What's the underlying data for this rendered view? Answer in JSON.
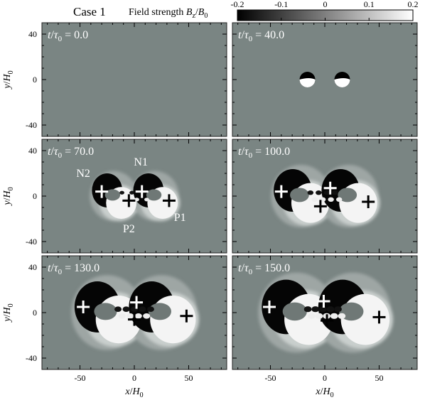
{
  "chart_data": {
    "type": "heatmap",
    "case_label": "Case 1",
    "colorbar": {
      "title_parts": [
        "Field strength ",
        "B",
        "z",
        "/",
        "B",
        "0"
      ],
      "min": -0.2,
      "max": 0.2,
      "ticks": [
        -0.2,
        -0.1,
        0,
        0.1,
        0.2
      ],
      "tick_labels": [
        "-0.2",
        "-0.1",
        "0",
        "0.1",
        "0.2"
      ],
      "colors": [
        "#000000",
        "#ffffff"
      ]
    },
    "xaxis": {
      "label_parts": [
        "x",
        "/",
        "H",
        "0"
      ],
      "range": [
        -85,
        85
      ],
      "ticks": [
        -50,
        0,
        50
      ],
      "tick_labels": [
        "-50",
        "0",
        "50"
      ]
    },
    "yaxis": {
      "label_parts": [
        "y",
        "/",
        "H",
        "0"
      ],
      "range": [
        -50,
        50
      ],
      "ticks": [
        40,
        0,
        -40
      ],
      "tick_labels": [
        "40",
        "0",
        "-40"
      ]
    },
    "background_color": "#7a8583",
    "time_label_parts": [
      "t",
      "/",
      "τ",
      "0",
      " = "
    ],
    "panels": [
      {
        "row": 0,
        "col": 0,
        "time": "0.0",
        "markers": []
      },
      {
        "row": 0,
        "col": 1,
        "time": "40.0",
        "markers": []
      },
      {
        "row": 1,
        "col": 0,
        "time": "70.0",
        "markers": [
          {
            "x": -30,
            "y": 4,
            "color": "#ffffff"
          },
          {
            "x": -5,
            "y": -4,
            "color": "#000000"
          },
          {
            "x": 7,
            "y": 4,
            "color": "#ffffff"
          },
          {
            "x": 32,
            "y": -4,
            "color": "#000000"
          }
        ],
        "annotations": [
          {
            "text": "N2",
            "x": -47,
            "y": 17
          },
          {
            "text": "N1",
            "x": 6,
            "y": 27
          },
          {
            "text": "P2",
            "x": -5,
            "y": -32
          },
          {
            "text": "P1",
            "x": 42,
            "y": -22
          }
        ]
      },
      {
        "row": 1,
        "col": 1,
        "time": "100.0",
        "markers": [
          {
            "x": -40,
            "y": 4,
            "color": "#ffffff"
          },
          {
            "x": -4,
            "y": -9,
            "color": "#000000"
          },
          {
            "x": 5,
            "y": 7,
            "color": "#ffffff"
          },
          {
            "x": 40,
            "y": -5,
            "color": "#000000"
          }
        ]
      },
      {
        "row": 2,
        "col": 0,
        "time": "130.0",
        "markers": [
          {
            "x": -47,
            "y": 5,
            "color": "#ffffff"
          },
          {
            "x": 2,
            "y": 9,
            "color": "#ffffff"
          },
          {
            "x": 0,
            "y": -6,
            "color": "#000000"
          },
          {
            "x": 48,
            "y": -3,
            "color": "#000000"
          }
        ]
      },
      {
        "row": 2,
        "col": 1,
        "time": "150.0",
        "markers": [
          {
            "x": -51,
            "y": 5,
            "color": "#ffffff"
          },
          {
            "x": -1,
            "y": 10,
            "color": "#ffffff"
          },
          {
            "x": 2,
            "y": -7,
            "color": "#000000"
          },
          {
            "x": 50,
            "y": -4,
            "color": "#000000"
          }
        ]
      }
    ]
  }
}
